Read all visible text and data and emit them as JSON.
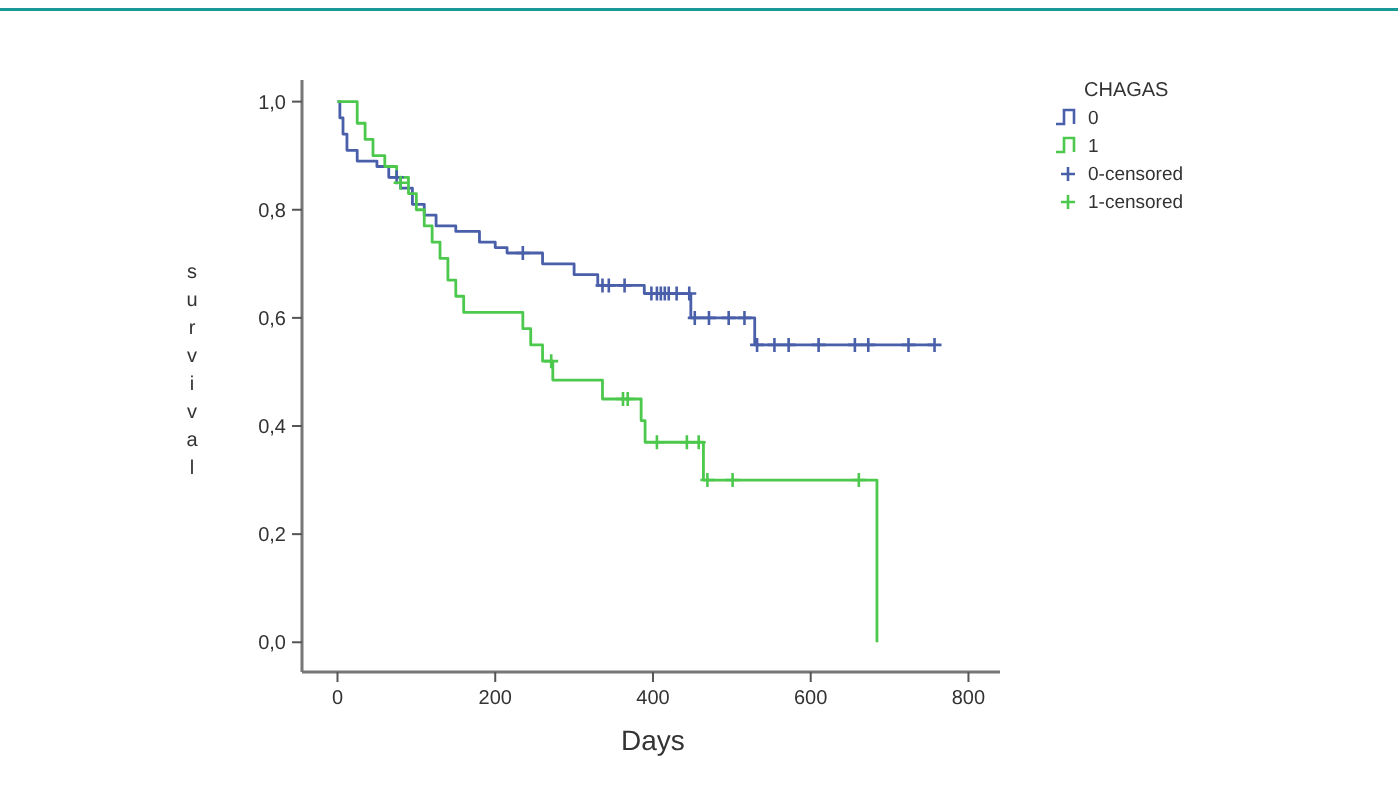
{
  "chart_data": {
    "type": "step",
    "xlabel": "Days",
    "ylabel": "survival",
    "legend_title": "CHAGAS",
    "legend": "top right",
    "xlim": [
      -45,
      840
    ],
    "ylim": [
      -0.055,
      1.04
    ],
    "xticks": [
      0,
      200,
      400,
      600,
      800
    ],
    "yticks": [
      {
        "value": 0,
        "label": "0,0"
      },
      {
        "value": 0.2,
        "label": "0,2"
      },
      {
        "value": 0.4,
        "label": "0,4"
      },
      {
        "value": 0.6,
        "label": "0,6"
      },
      {
        "value": 0.8,
        "label": "0,8"
      },
      {
        "value": 1,
        "label": "1,0"
      }
    ],
    "series": [
      {
        "name": "0",
        "color": "#4a5faa",
        "x": [
          0,
          3,
          7,
          12,
          25,
          50,
          65,
          80,
          95,
          110,
          125,
          150,
          180,
          200,
          215,
          260,
          300,
          330,
          389,
          448,
          529,
          757
        ],
        "values": [
          1.0,
          0.97,
          0.94,
          0.91,
          0.89,
          0.88,
          0.86,
          0.84,
          0.81,
          0.79,
          0.77,
          0.76,
          0.74,
          0.73,
          0.72,
          0.7,
          0.68,
          0.66,
          0.645,
          0.6,
          0.55,
          0.55
        ]
      },
      {
        "name": "1",
        "color": "#4cc94c",
        "x": [
          0,
          25,
          35,
          45,
          60,
          75,
          90,
          100,
          110,
          120,
          130,
          140,
          150,
          160,
          235,
          245,
          260,
          273,
          336,
          385,
          390,
          464,
          684
        ],
        "values": [
          1.0,
          0.96,
          0.93,
          0.9,
          0.88,
          0.86,
          0.83,
          0.8,
          0.77,
          0.74,
          0.71,
          0.67,
          0.64,
          0.61,
          0.58,
          0.55,
          0.52,
          0.485,
          0.45,
          0.41,
          0.37,
          0.3,
          0.0
        ]
      },
      {
        "name": "0-censored",
        "type": "scatter",
        "marker": "cross",
        "color": "#4a5faa",
        "x": [
          75,
          235,
          336,
          344,
          364,
          398,
          405,
          410,
          415,
          420,
          430,
          446,
          453,
          471,
          496,
          516,
          532,
          554,
          572,
          610,
          656,
          673,
          724,
          757
        ],
        "values": [
          0.86,
          0.72,
          0.66,
          0.66,
          0.66,
          0.645,
          0.645,
          0.645,
          0.645,
          0.645,
          0.645,
          0.645,
          0.6,
          0.6,
          0.6,
          0.6,
          0.55,
          0.55,
          0.55,
          0.55,
          0.55,
          0.55,
          0.55,
          0.55
        ]
      },
      {
        "name": "1-censored",
        "type": "scatter",
        "marker": "cross",
        "color": "#4cc94c",
        "x": [
          80,
          271,
          362,
          368,
          405,
          443,
          458,
          469,
          501,
          661
        ],
        "values": [
          0.85,
          0.52,
          0.45,
          0.45,
          0.37,
          0.37,
          0.37,
          0.3,
          0.3,
          0.3
        ]
      }
    ]
  }
}
